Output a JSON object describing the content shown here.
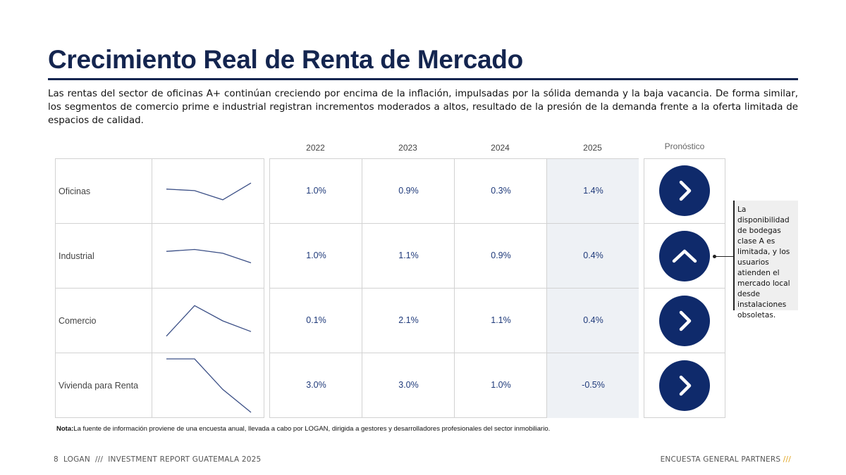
{
  "header": {
    "title": "Crecimiento Real de Renta de Mercado",
    "intro": "Las rentas del sector de oficinas A+ continúan creciendo por encima de la inflación, impulsadas por la sólida demanda y la baja vacancia. De forma similar, los segmentos de comercio prime e industrial registran incrementos moderados a altos, resultado de la presión de la demanda frente a la oferta limitada de espacios de calidad."
  },
  "table": {
    "years": [
      "2022",
      "2023",
      "2024",
      "2025"
    ],
    "forecast_header": "Pronóstico",
    "rows": [
      {
        "label": "Oficinas",
        "values": [
          "1.0%",
          "0.9%",
          "0.3%",
          "1.4%"
        ],
        "trend": [
          1.0,
          0.9,
          0.3,
          1.4
        ],
        "forecast_icon": "chevron-right-icon"
      },
      {
        "label": "Industrial",
        "values": [
          "1.0%",
          "1.1%",
          "0.9%",
          "0.4%"
        ],
        "trend": [
          1.0,
          1.1,
          0.9,
          0.4
        ],
        "forecast_icon": "chevron-up-icon"
      },
      {
        "label": "Comercio",
        "values": [
          "0.1%",
          "2.1%",
          "1.1%",
          "0.4%"
        ],
        "trend": [
          0.1,
          2.1,
          1.1,
          0.4
        ],
        "forecast_icon": "chevron-right-icon"
      },
      {
        "label": "Vivienda para Renta",
        "values": [
          "3.0%",
          "3.0%",
          "1.0%",
          "-0.5%"
        ],
        "trend": [
          3.0,
          3.0,
          1.0,
          -0.5
        ],
        "forecast_icon": "chevron-right-icon"
      }
    ]
  },
  "callout": {
    "text": "La disponibilidad de bodegas clase A es limitada, y los usuarios atienden el mercado local desde instalaciones obsoletas."
  },
  "note": {
    "label": "Nota",
    "text": "La fuente de información proviene de una encuesta anual, llevada a cabo por LOGAN, dirigida a gestores y desarrolladores profesionales del sector inmobiliario."
  },
  "footer": {
    "left": "8  LOGAN  ///  INVESTMENT REPORT GUATEMALA 2025",
    "right": "ENCUESTA GENERAL PARTNERS",
    "right_accent": "///"
  },
  "colors": {
    "navy": "#14254f",
    "circle": "#0f2a6b",
    "value_text": "#1f3a7a",
    "shade": "#eef1f5",
    "accent": "#e0a21b"
  }
}
